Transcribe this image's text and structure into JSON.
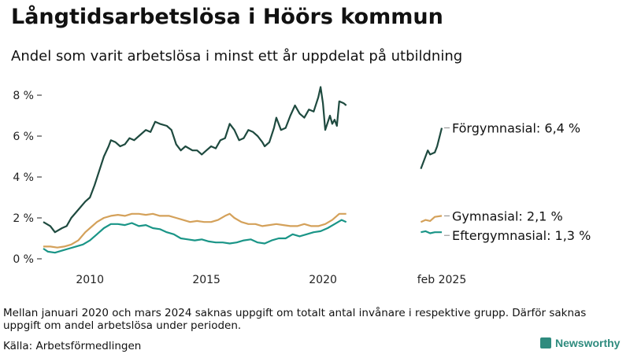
{
  "header": {
    "title": "Långtidsarbetslösa i Höörs kommun",
    "subtitle": "Andel som varit arbetslösa i minst ett år uppdelat på utbildning"
  },
  "footer": {
    "note": "Mellan januari 2020 och mars 2024 saknas uppgift om totalt antal invånare i respektive grupp. Därför saknas uppgift om andel arbetslösa under perioden.",
    "source": "Källa: Arbetsförmedlingen",
    "brand": "Newsworthy"
  },
  "colors": {
    "forgymnasial": "#1e4a3f",
    "gymnasial": "#d4a15a",
    "eftergymnasial": "#1a9587",
    "axis": "#222222"
  },
  "chart_data": {
    "type": "line",
    "y_axis": {
      "ticks": [
        0,
        2,
        4,
        6,
        8
      ],
      "tick_labels": [
        "0 %",
        "2 %",
        "4 %",
        "6 %",
        "8 %"
      ],
      "unit": "%"
    },
    "x_axis": {
      "ticks": [
        2010,
        2015,
        2020,
        2025.1
      ],
      "tick_labels": [
        "2010",
        "2015",
        "2020",
        "feb 2025"
      ]
    },
    "grid": false,
    "series": [
      {
        "name": "Förgymnasial",
        "end_label": "Förgymnasial: 6,4 %",
        "color_key": "forgymnasial",
        "segments": [
          [
            [
              2008.0,
              1.8
            ],
            [
              2008.3,
              1.6
            ],
            [
              2008.5,
              1.3
            ],
            [
              2008.8,
              1.5
            ],
            [
              2009.0,
              1.6
            ],
            [
              2009.2,
              2.0
            ],
            [
              2009.5,
              2.4
            ],
            [
              2009.8,
              2.8
            ],
            [
              2010.0,
              3.0
            ],
            [
              2010.2,
              3.6
            ],
            [
              2010.4,
              4.3
            ],
            [
              2010.6,
              5.0
            ],
            [
              2010.8,
              5.5
            ],
            [
              2010.9,
              5.8
            ],
            [
              2011.1,
              5.7
            ],
            [
              2011.3,
              5.5
            ],
            [
              2011.5,
              5.6
            ],
            [
              2011.7,
              5.9
            ],
            [
              2011.9,
              5.8
            ],
            [
              2012.1,
              6.0
            ],
            [
              2012.4,
              6.3
            ],
            [
              2012.6,
              6.2
            ],
            [
              2012.8,
              6.7
            ],
            [
              2013.0,
              6.6
            ],
            [
              2013.3,
              6.5
            ],
            [
              2013.5,
              6.3
            ],
            [
              2013.7,
              5.6
            ],
            [
              2013.9,
              5.3
            ],
            [
              2014.1,
              5.5
            ],
            [
              2014.4,
              5.3
            ],
            [
              2014.6,
              5.3
            ],
            [
              2014.8,
              5.1
            ],
            [
              2015.0,
              5.3
            ],
            [
              2015.2,
              5.5
            ],
            [
              2015.4,
              5.4
            ],
            [
              2015.6,
              5.8
            ],
            [
              2015.8,
              5.9
            ],
            [
              2016.0,
              6.6
            ],
            [
              2016.2,
              6.3
            ],
            [
              2016.4,
              5.8
            ],
            [
              2016.6,
              5.9
            ],
            [
              2016.8,
              6.3
            ],
            [
              2017.0,
              6.2
            ],
            [
              2017.2,
              6.0
            ],
            [
              2017.4,
              5.7
            ],
            [
              2017.5,
              5.5
            ],
            [
              2017.7,
              5.7
            ],
            [
              2017.9,
              6.4
            ],
            [
              2018.0,
              6.9
            ],
            [
              2018.2,
              6.3
            ],
            [
              2018.4,
              6.4
            ],
            [
              2018.6,
              7.0
            ],
            [
              2018.8,
              7.5
            ],
            [
              2019.0,
              7.1
            ],
            [
              2019.2,
              6.9
            ],
            [
              2019.4,
              7.3
            ],
            [
              2019.6,
              7.2
            ],
            [
              2019.8,
              7.9
            ],
            [
              2019.9,
              8.4
            ],
            [
              2020.0,
              7.6
            ],
            [
              2020.1,
              6.3
            ],
            [
              2020.3,
              7.0
            ],
            [
              2020.4,
              6.6
            ],
            [
              2020.5,
              6.8
            ],
            [
              2020.6,
              6.5
            ],
            [
              2020.7,
              7.7
            ],
            [
              2020.9,
              7.6
            ],
            [
              2021.0,
              7.5
            ]
          ],
          [
            [
              2024.2,
              4.4
            ],
            [
              2024.4,
              5.0
            ],
            [
              2024.5,
              5.3
            ],
            [
              2024.6,
              5.1
            ],
            [
              2024.8,
              5.2
            ],
            [
              2024.9,
              5.5
            ],
            [
              2025.1,
              6.4
            ]
          ]
        ]
      },
      {
        "name": "Gymnasial",
        "end_label": "Gymnasial: 2,1 %",
        "color_key": "gymnasial",
        "segments": [
          [
            [
              2008.0,
              0.6
            ],
            [
              2008.3,
              0.6
            ],
            [
              2008.6,
              0.55
            ],
            [
              2008.9,
              0.6
            ],
            [
              2009.2,
              0.7
            ],
            [
              2009.5,
              0.9
            ],
            [
              2009.8,
              1.3
            ],
            [
              2010.0,
              1.5
            ],
            [
              2010.3,
              1.8
            ],
            [
              2010.6,
              2.0
            ],
            [
              2010.9,
              2.1
            ],
            [
              2011.2,
              2.15
            ],
            [
              2011.5,
              2.1
            ],
            [
              2011.8,
              2.2
            ],
            [
              2012.1,
              2.2
            ],
            [
              2012.4,
              2.15
            ],
            [
              2012.7,
              2.2
            ],
            [
              2013.0,
              2.1
            ],
            [
              2013.4,
              2.1
            ],
            [
              2013.7,
              2.0
            ],
            [
              2014.0,
              1.9
            ],
            [
              2014.3,
              1.8
            ],
            [
              2014.6,
              1.85
            ],
            [
              2014.9,
              1.8
            ],
            [
              2015.2,
              1.8
            ],
            [
              2015.5,
              1.9
            ],
            [
              2015.8,
              2.1
            ],
            [
              2016.0,
              2.2
            ],
            [
              2016.2,
              2.0
            ],
            [
              2016.5,
              1.8
            ],
            [
              2016.8,
              1.7
            ],
            [
              2017.1,
              1.7
            ],
            [
              2017.4,
              1.6
            ],
            [
              2017.7,
              1.65
            ],
            [
              2018.0,
              1.7
            ],
            [
              2018.3,
              1.65
            ],
            [
              2018.6,
              1.6
            ],
            [
              2018.9,
              1.6
            ],
            [
              2019.2,
              1.7
            ],
            [
              2019.5,
              1.6
            ],
            [
              2019.8,
              1.6
            ],
            [
              2020.1,
              1.7
            ],
            [
              2020.4,
              1.9
            ],
            [
              2020.7,
              2.2
            ],
            [
              2021.0,
              2.2
            ]
          ],
          [
            [
              2024.2,
              1.8
            ],
            [
              2024.4,
              1.9
            ],
            [
              2024.6,
              1.85
            ],
            [
              2024.8,
              2.05
            ],
            [
              2025.1,
              2.1
            ]
          ]
        ]
      },
      {
        "name": "Eftergymnasial",
        "end_label": "Eftergymnasial: 1,3 %",
        "color_key": "eftergymnasial",
        "segments": [
          [
            [
              2008.0,
              0.5
            ],
            [
              2008.2,
              0.35
            ],
            [
              2008.5,
              0.3
            ],
            [
              2008.8,
              0.4
            ],
            [
              2009.1,
              0.5
            ],
            [
              2009.4,
              0.6
            ],
            [
              2009.7,
              0.7
            ],
            [
              2010.0,
              0.9
            ],
            [
              2010.3,
              1.2
            ],
            [
              2010.6,
              1.5
            ],
            [
              2010.9,
              1.7
            ],
            [
              2011.2,
              1.7
            ],
            [
              2011.5,
              1.65
            ],
            [
              2011.8,
              1.75
            ],
            [
              2012.1,
              1.6
            ],
            [
              2012.4,
              1.65
            ],
            [
              2012.7,
              1.5
            ],
            [
              2013.0,
              1.45
            ],
            [
              2013.3,
              1.3
            ],
            [
              2013.6,
              1.2
            ],
            [
              2013.9,
              1.0
            ],
            [
              2014.2,
              0.95
            ],
            [
              2014.5,
              0.9
            ],
            [
              2014.8,
              0.95
            ],
            [
              2015.1,
              0.85
            ],
            [
              2015.4,
              0.8
            ],
            [
              2015.7,
              0.8
            ],
            [
              2016.0,
              0.75
            ],
            [
              2016.3,
              0.8
            ],
            [
              2016.6,
              0.9
            ],
            [
              2016.9,
              0.95
            ],
            [
              2017.2,
              0.8
            ],
            [
              2017.5,
              0.75
            ],
            [
              2017.8,
              0.9
            ],
            [
              2018.1,
              1.0
            ],
            [
              2018.4,
              1.0
            ],
            [
              2018.7,
              1.2
            ],
            [
              2019.0,
              1.1
            ],
            [
              2019.3,
              1.2
            ],
            [
              2019.6,
              1.3
            ],
            [
              2019.9,
              1.35
            ],
            [
              2020.2,
              1.5
            ],
            [
              2020.5,
              1.7
            ],
            [
              2020.8,
              1.9
            ],
            [
              2021.0,
              1.8
            ]
          ],
          [
            [
              2024.2,
              1.3
            ],
            [
              2024.4,
              1.35
            ],
            [
              2024.6,
              1.25
            ],
            [
              2024.8,
              1.3
            ],
            [
              2025.1,
              1.3
            ]
          ]
        ]
      }
    ]
  }
}
